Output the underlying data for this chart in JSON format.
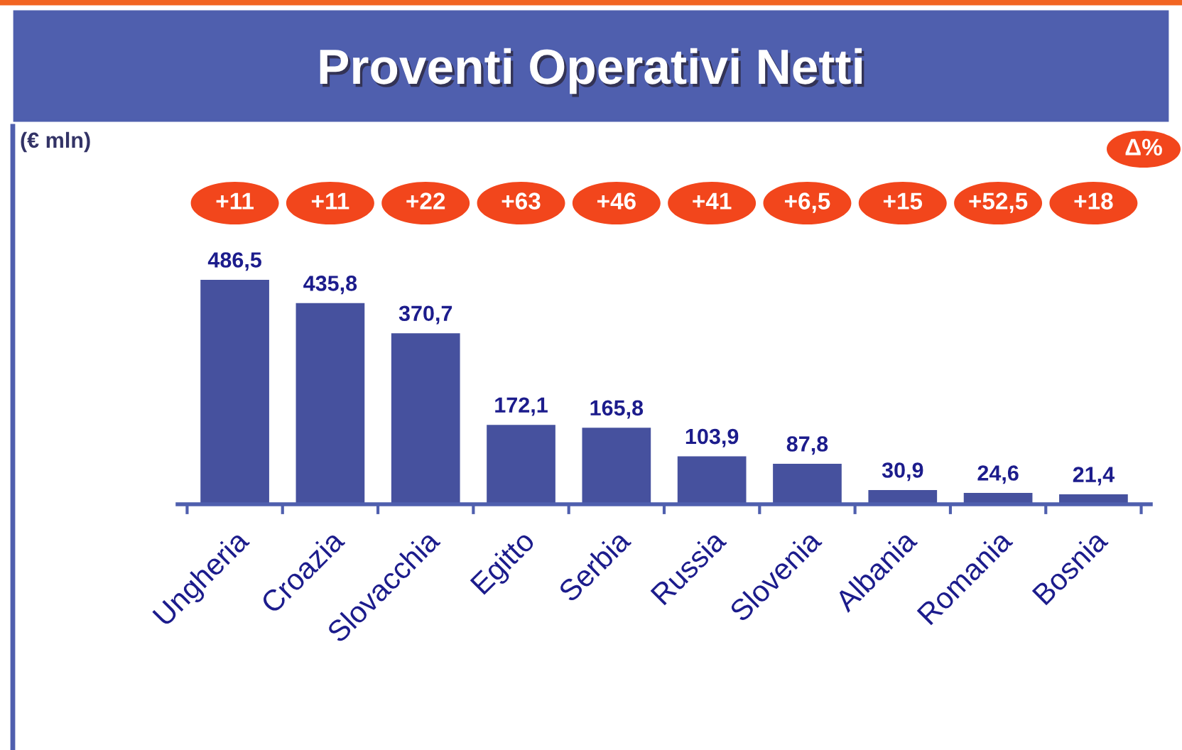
{
  "chart_data": {
    "type": "bar",
    "title": "Proventi Operativi Netti",
    "categories": [
      "Ungheria",
      "Croazia",
      "Slovacchia",
      "Egitto",
      "Serbia",
      "Russia",
      "Slovenia",
      "Albania",
      "Romania",
      "Bosnia"
    ],
    "values": [
      486.5,
      435.8,
      370.7,
      172.1,
      165.8,
      103.9,
      87.8,
      30.9,
      24.6,
      21.4
    ],
    "value_labels": [
      "486,5",
      "435,8",
      "370,7",
      "172,1",
      "165,8",
      "103,9",
      "87,8",
      "30,9",
      "24,6",
      "21,4"
    ],
    "color": "#46519e",
    "annotations": [
      "(€ mln)",
      "Δ%",
      "+11",
      "+11",
      "+22",
      "+63",
      "+46",
      "+41",
      "+6,5",
      "+15",
      "+52,5",
      "+18"
    ],
    "grid": false,
    "legend": false
  }
}
